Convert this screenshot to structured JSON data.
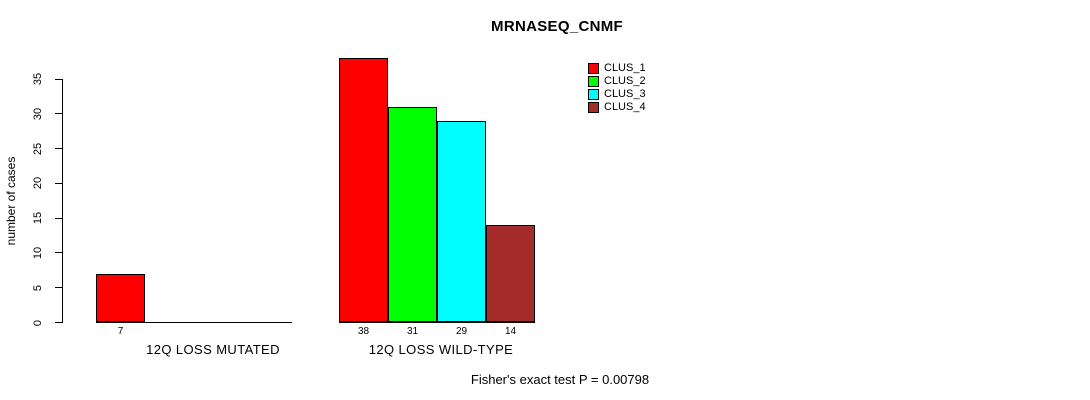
{
  "page": {
    "background_color": "#FFFFFF",
    "text_color": "#000000"
  },
  "chart_data": {
    "type": "bar",
    "title": "MRNASEQ_CNMF",
    "xlabel": "",
    "ylabel": "number of cases",
    "footnote": "Fisher's exact test P = 0.00798",
    "ylim": [
      0,
      38
    ],
    "yticks": [
      0,
      5,
      10,
      15,
      20,
      25,
      30,
      35
    ],
    "grid": false,
    "legend_position": "top-right",
    "legend": [
      {
        "label": "CLUS_1",
        "color": "#FF0000"
      },
      {
        "label": "CLUS_2",
        "color": "#00FF00"
      },
      {
        "label": "CLUS_3",
        "color": "#00FFFF"
      },
      {
        "label": "CLUS_4",
        "color": "#A52A2A"
      }
    ],
    "groups": [
      {
        "label": "12Q LOSS MUTATED",
        "slots": 4,
        "bars": [
          {
            "series": "CLUS_1",
            "value": 7,
            "value_label": "7",
            "color": "#FF0000"
          }
        ]
      },
      {
        "label": "12Q LOSS WILD-TYPE",
        "slots": 4,
        "bars": [
          {
            "series": "CLUS_1",
            "value": 38,
            "value_label": "38",
            "color": "#FF0000"
          },
          {
            "series": "CLUS_2",
            "value": 31,
            "value_label": "31",
            "color": "#00FF00"
          },
          {
            "series": "CLUS_3",
            "value": 29,
            "value_label": "29",
            "color": "#00FFFF"
          },
          {
            "series": "CLUS_4",
            "value": 14,
            "value_label": "14",
            "color": "#A52A2A"
          }
        ]
      }
    ]
  }
}
